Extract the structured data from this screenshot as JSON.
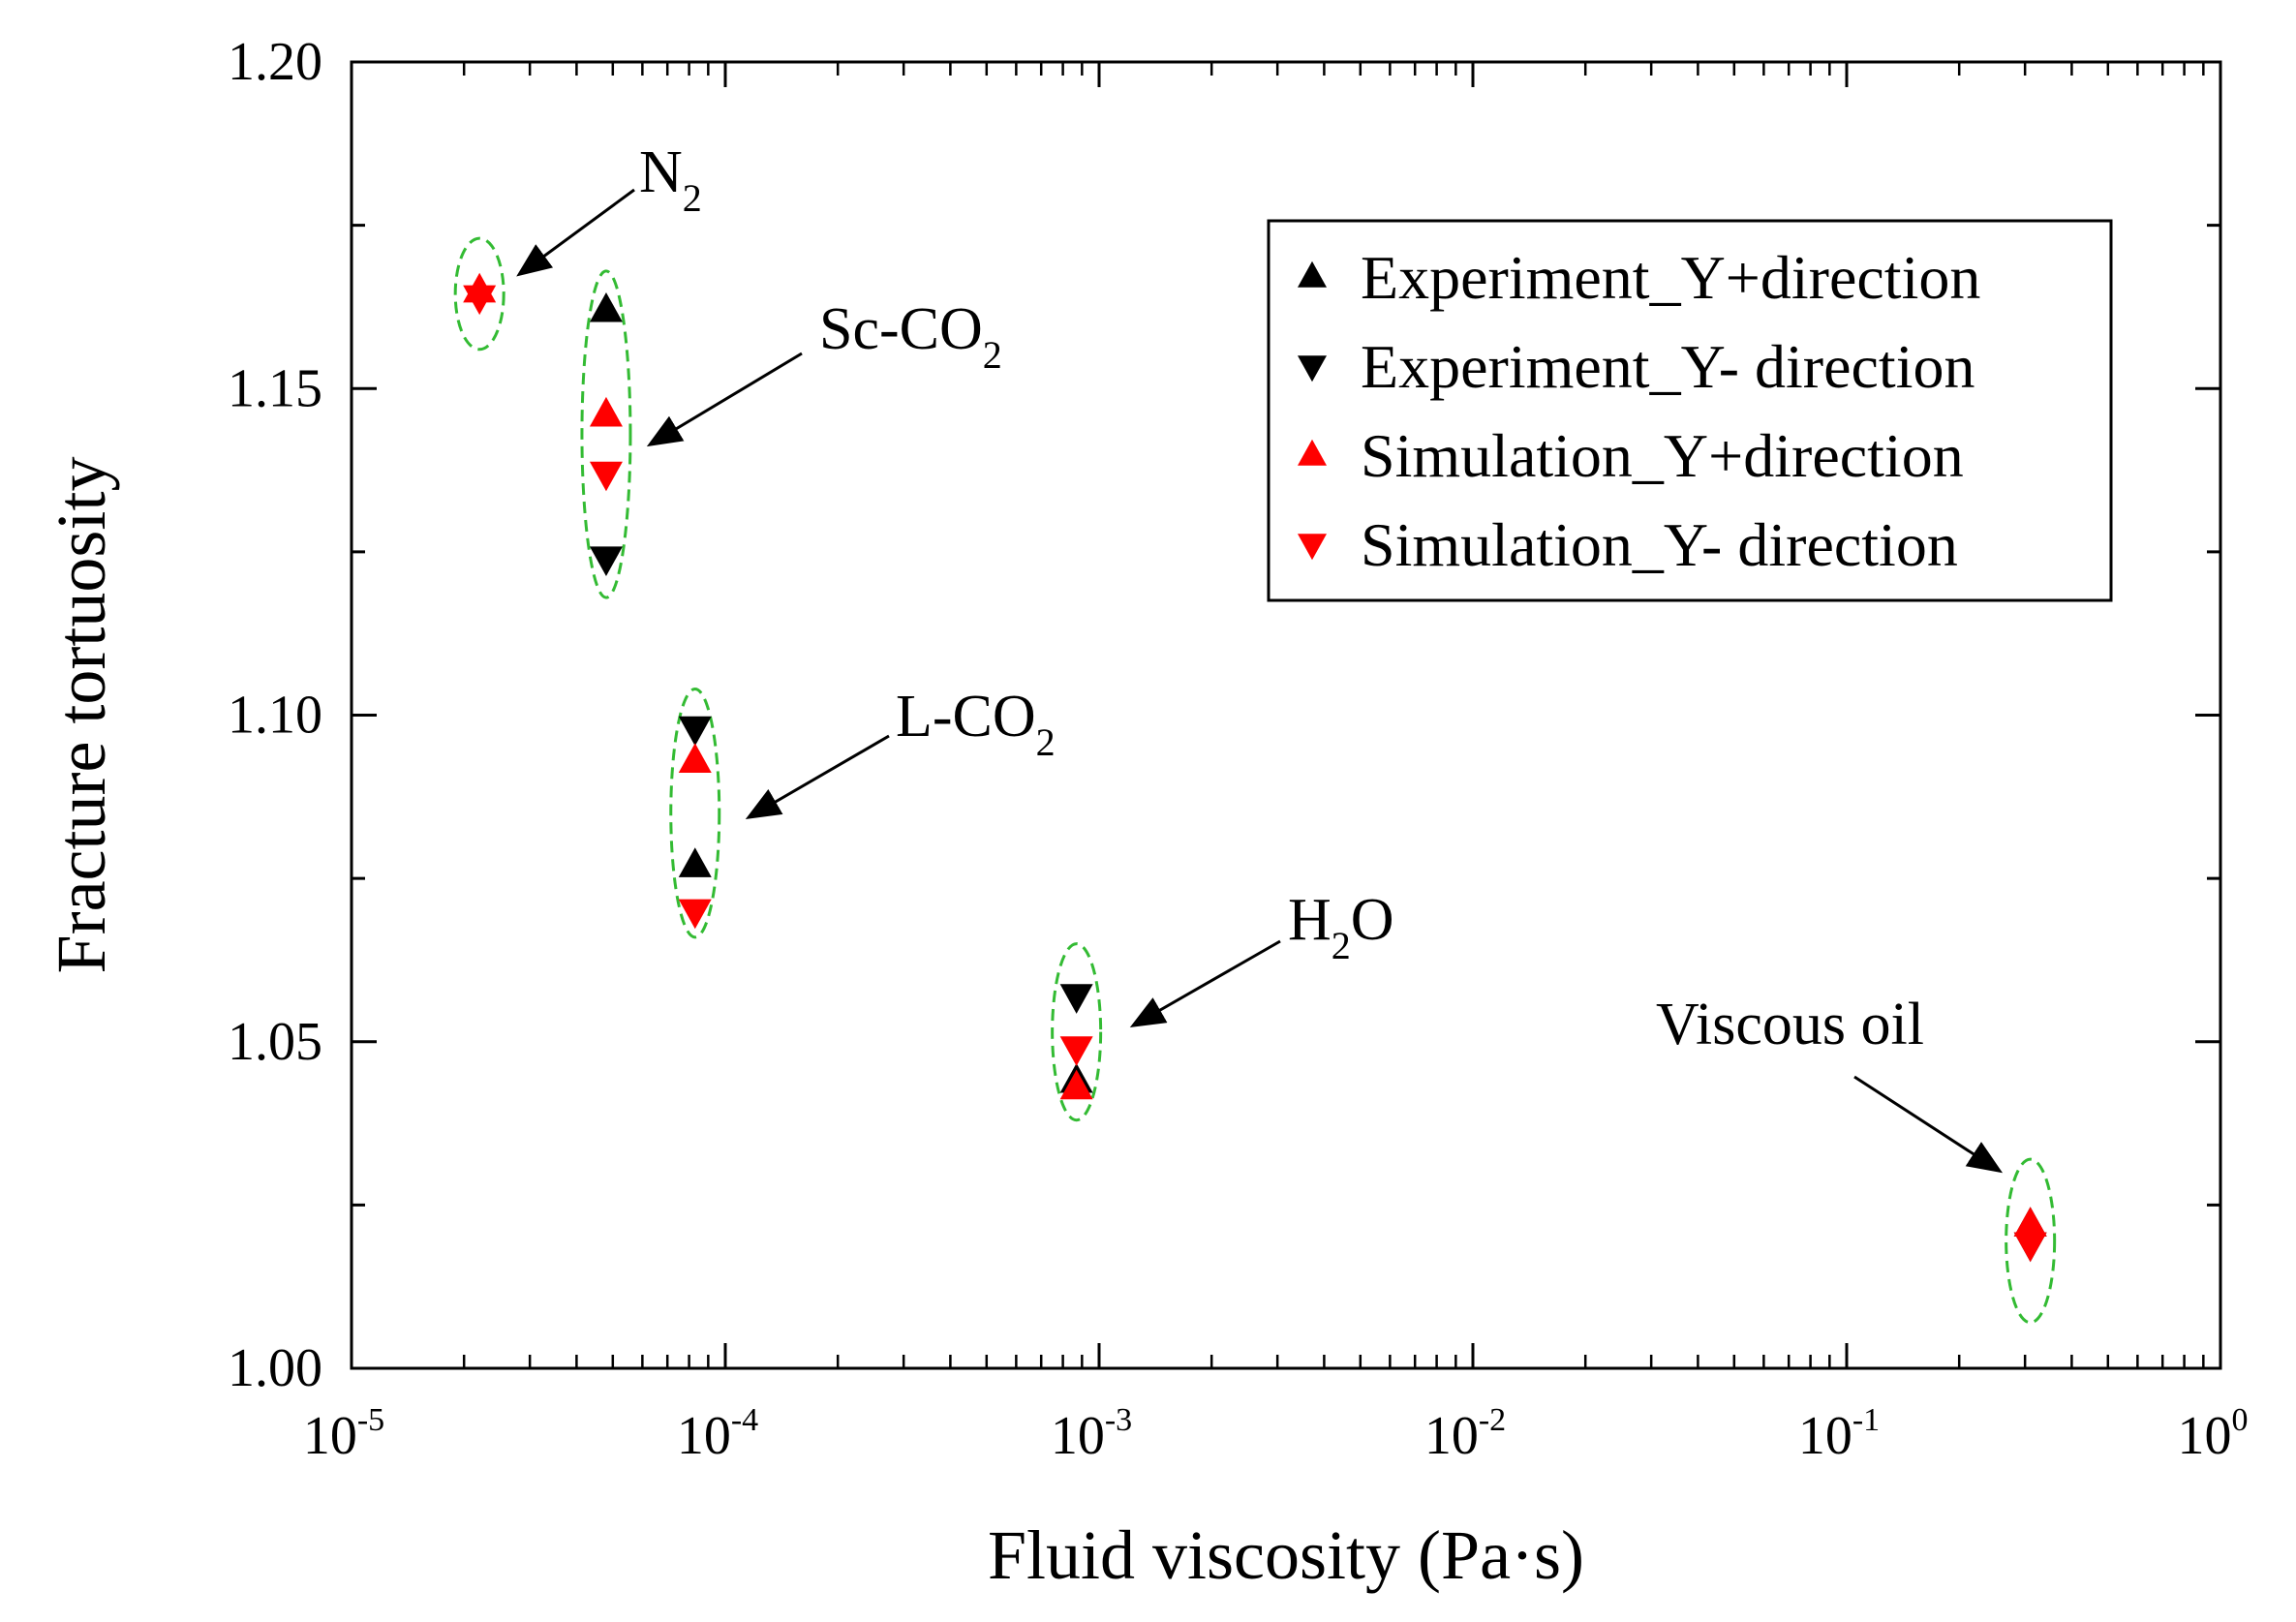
{
  "chart_data": {
    "type": "scatter",
    "xscale": "log",
    "xlabel": "Fluid viscosity (Pa·s)",
    "ylabel": "Fracture tortuosity",
    "xlim": [
      1e-05,
      1
    ],
    "ylim": [
      1.0,
      1.2
    ],
    "x_tick_labels": [
      {
        "base": "10",
        "exp": "-5"
      },
      {
        "base": "10",
        "exp": "-4"
      },
      {
        "base": "10",
        "exp": "-3"
      },
      {
        "base": "10",
        "exp": "-2"
      },
      {
        "base": "10",
        "exp": "-1"
      },
      {
        "base": "10",
        "exp": "0"
      }
    ],
    "y_tick_labels": [
      "1.00",
      "1.05",
      "1.10",
      "1.15",
      "1.20"
    ],
    "legend_position": "top-right",
    "series": [
      {
        "name": "Experiment_Y+direction",
        "color": "#000000",
        "marker": "triangle-up",
        "points": [
          [
            4.8e-05,
            1.162
          ],
          [
            8.3e-05,
            1.077
          ],
          [
            0.00087,
            1.044
          ],
          [
            0.31,
            1.022
          ]
        ]
      },
      {
        "name": "Experiment_Y- direction",
        "color": "#000000",
        "marker": "triangle-down",
        "points": [
          [
            4.8e-05,
            1.124
          ],
          [
            8.3e-05,
            1.098
          ],
          [
            0.00087,
            1.057
          ],
          [
            0.31,
            1.019
          ]
        ]
      },
      {
        "name": "Simulation_Y+direction",
        "color": "#ff0000",
        "marker": "triangle-up",
        "points": [
          [
            2.2e-05,
            1.165
          ],
          [
            4.8e-05,
            1.146
          ],
          [
            8.3e-05,
            1.093
          ],
          [
            0.00087,
            1.043
          ],
          [
            0.31,
            1.022
          ]
        ]
      },
      {
        "name": "Simulation_Y- direction",
        "color": "#ff0000",
        "marker": "triangle-down",
        "points": [
          [
            2.2e-05,
            1.164
          ],
          [
            4.8e-05,
            1.137
          ],
          [
            8.3e-05,
            1.07
          ],
          [
            0.00087,
            1.049
          ],
          [
            0.31,
            1.019
          ]
        ]
      }
    ],
    "groups": [
      {
        "label": "N",
        "sub": "2",
        "suffix": "",
        "x": 2.2e-05,
        "y_min": 1.156,
        "y_max": 1.173
      },
      {
        "label": "Sc-CO",
        "sub": "2",
        "suffix": "",
        "x": 4.8e-05,
        "y_min": 1.118,
        "y_max": 1.168
      },
      {
        "label": "L-CO",
        "sub": "2",
        "suffix": "",
        "x": 8.3e-05,
        "y_min": 1.066,
        "y_max": 1.104
      },
      {
        "label": "H",
        "sub": "2",
        "suffix": "O",
        "x": 0.00087,
        "y_min": 1.038,
        "y_max": 1.065
      },
      {
        "label": "Viscous oil",
        "sub": "",
        "suffix": "",
        "x": 0.31,
        "y_min": 1.007,
        "y_max": 1.032
      }
    ],
    "colors": {
      "group_outline": "#33bb33",
      "axis": "#000000"
    }
  }
}
